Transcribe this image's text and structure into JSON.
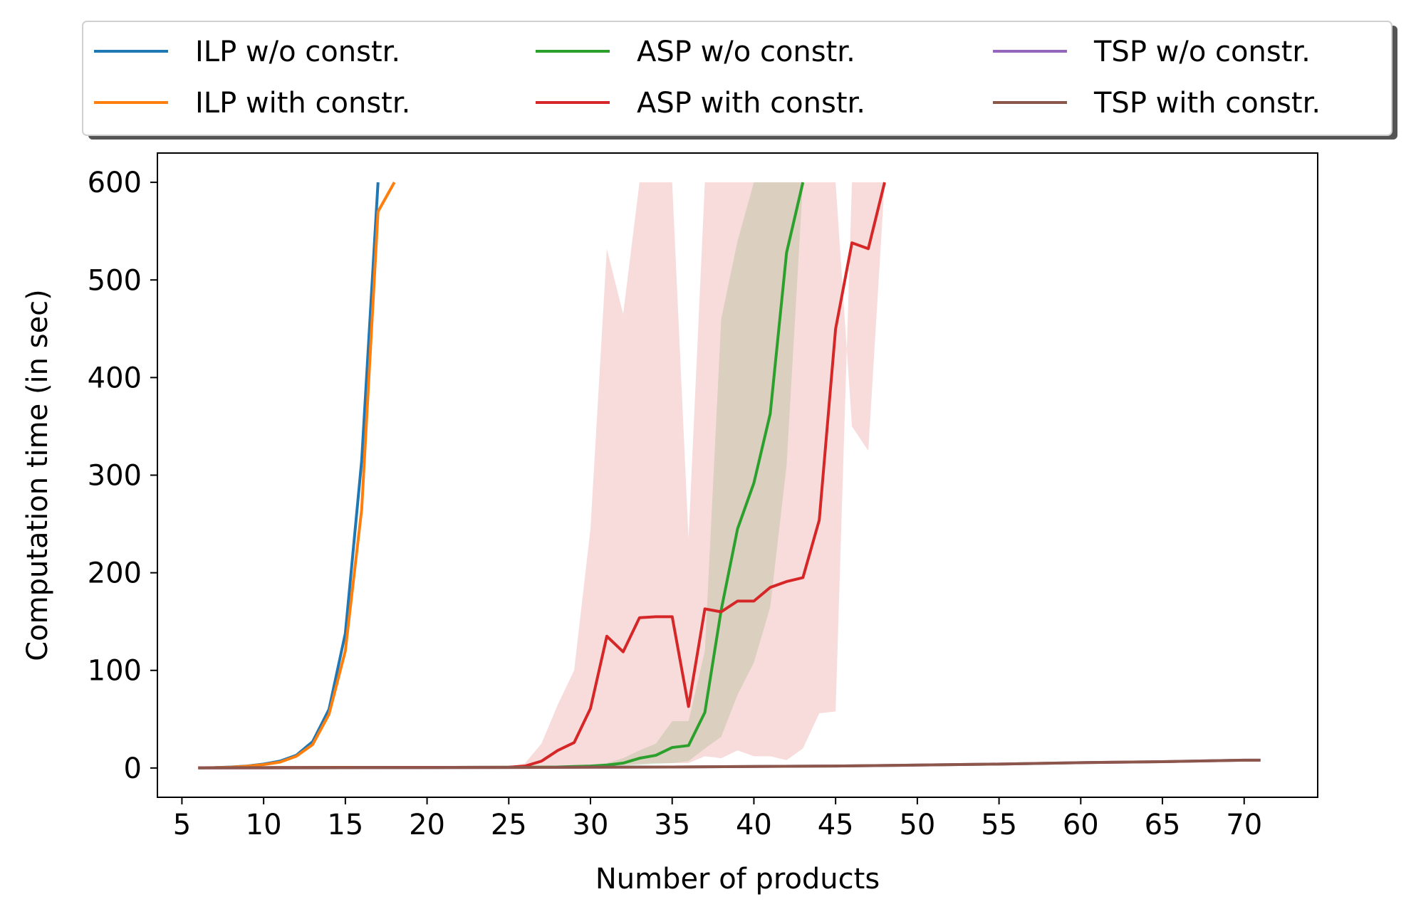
{
  "chart_data": {
    "type": "line",
    "title": "",
    "xlabel": "Number of products",
    "ylabel": "Computation time (in sec)",
    "xlim": [
      3.5,
      74.5
    ],
    "ylim": [
      -30,
      630
    ],
    "xticks": [
      5,
      10,
      15,
      20,
      25,
      30,
      35,
      40,
      45,
      50,
      55,
      60,
      65,
      70
    ],
    "yticks": [
      0,
      100,
      200,
      300,
      400,
      500,
      600
    ],
    "legend_position": "top, outside plot, 3 columns",
    "grid": false,
    "series": [
      {
        "name": "ILP w/o constr.",
        "color": "#1f77b4",
        "x": [
          6,
          7,
          8,
          9,
          10,
          11,
          12,
          13,
          14,
          15,
          16,
          17
        ],
        "y": [
          0.2,
          0.4,
          1,
          2,
          4,
          7,
          13,
          27,
          60,
          138,
          315,
          600
        ]
      },
      {
        "name": "ILP with constr.",
        "color": "#ff7f0e",
        "x": [
          6,
          7,
          8,
          9,
          10,
          11,
          12,
          13,
          14,
          15,
          16,
          17,
          18
        ],
        "y": [
          0.2,
          0.4,
          0.8,
          1.8,
          3.5,
          6,
          12,
          24,
          55,
          120,
          265,
          570,
          600
        ]
      },
      {
        "name": "ASP w/o constr.",
        "color": "#2ca02c",
        "x": [
          6,
          10,
          15,
          20,
          25,
          28,
          29,
          30,
          31,
          32,
          33,
          34,
          35,
          36,
          37,
          38,
          39,
          40,
          41,
          42,
          43
        ],
        "y": [
          0.3,
          0.4,
          0.5,
          0.6,
          0.8,
          1,
          1.5,
          2,
          3,
          5,
          10,
          13,
          21,
          23,
          57,
          162,
          245,
          292,
          363,
          528,
          600
        ],
        "band_low": [
          0.1,
          0.2,
          0.3,
          0.4,
          0.5,
          0.7,
          1,
          1,
          1.5,
          2,
          3,
          4,
          5,
          7,
          20,
          32,
          75,
          108,
          165,
          310,
          600
        ],
        "band_high": [
          0.5,
          0.6,
          0.7,
          0.8,
          1,
          1.5,
          2,
          3,
          5,
          10,
          18,
          25,
          48,
          48,
          120,
          460,
          540,
          600,
          600,
          600,
          600
        ]
      },
      {
        "name": "ASP with constr.",
        "color": "#d62728",
        "x": [
          6,
          10,
          15,
          20,
          25,
          26,
          27,
          28,
          29,
          30,
          31,
          32,
          33,
          34,
          35,
          36,
          37,
          38,
          39,
          40,
          41,
          42,
          43,
          44,
          45,
          46,
          47,
          48
        ],
        "y": [
          0.3,
          0.4,
          0.5,
          0.6,
          0.8,
          2,
          7,
          18,
          26,
          61,
          135,
          119,
          154,
          155,
          155,
          63,
          163,
          160,
          171,
          171,
          185,
          191,
          195,
          254,
          450,
          538,
          532,
          600
        ],
        "band_low": [
          0.1,
          0.2,
          0.3,
          0.4,
          0.5,
          0.7,
          1,
          1,
          1.5,
          2,
          3,
          3,
          4,
          5,
          5,
          5,
          12,
          10,
          18,
          12,
          12,
          8,
          20,
          56,
          58,
          600,
          600,
          600
        ],
        "band_high": [
          0.5,
          0.6,
          0.7,
          0.8,
          1,
          5,
          25,
          65,
          100,
          245,
          532,
          465,
          600,
          600,
          600,
          235,
          600,
          600,
          600,
          600,
          600,
          600,
          600,
          600,
          600,
          350,
          325,
          600
        ]
      },
      {
        "name": "TSP w/o constr.",
        "color": "#9467bd",
        "x": [
          6,
          10,
          15,
          20,
          25,
          30,
          35,
          40,
          45,
          50,
          55,
          60,
          65,
          70,
          71
        ],
        "y": [
          0.1,
          0.2,
          0.3,
          0.4,
          0.5,
          0.8,
          1,
          1.5,
          2,
          3,
          4,
          5.5,
          6.5,
          8,
          8
        ]
      },
      {
        "name": "TSP with constr.",
        "color": "#8c564b",
        "x": [
          6,
          10,
          15,
          20,
          25,
          30,
          35,
          40,
          45,
          50,
          55,
          60,
          65,
          70,
          71
        ],
        "y": [
          0.1,
          0.2,
          0.3,
          0.4,
          0.5,
          0.8,
          1,
          1.5,
          2,
          3,
          4,
          5.5,
          6.5,
          8,
          8
        ]
      }
    ]
  }
}
